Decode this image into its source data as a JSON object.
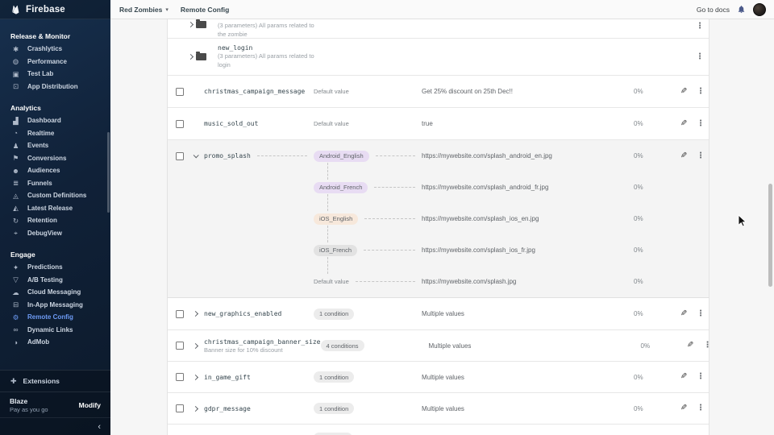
{
  "sidebar": {
    "brand": "Firebase",
    "sections": [
      {
        "title": "Release & Monitor",
        "items": [
          {
            "slug": "crashlytics",
            "label": "Crashlytics",
            "icon": "crashlytics-icon",
            "glyph": "✱"
          },
          {
            "slug": "performance",
            "label": "Performance",
            "icon": "performance-icon",
            "glyph": "◍"
          },
          {
            "slug": "test-lab",
            "label": "Test Lab",
            "icon": "test-lab-icon",
            "glyph": "▣"
          },
          {
            "slug": "app-distribution",
            "label": "App Distribution",
            "icon": "app-distribution-icon",
            "glyph": "⊡"
          }
        ]
      },
      {
        "title": "Analytics",
        "items": [
          {
            "slug": "dashboard",
            "label": "Dashboard",
            "icon": "dashboard-icon",
            "glyph": "▟"
          },
          {
            "slug": "realtime",
            "label": "Realtime",
            "icon": "realtime-icon",
            "glyph": "◔"
          },
          {
            "slug": "events",
            "label": "Events",
            "icon": "events-icon",
            "glyph": "♟"
          },
          {
            "slug": "conversions",
            "label": "Conversions",
            "icon": "conversions-icon",
            "glyph": "⚑"
          },
          {
            "slug": "audiences",
            "label": "Audiences",
            "icon": "audiences-icon",
            "glyph": "☻"
          },
          {
            "slug": "funnels",
            "label": "Funnels",
            "icon": "funnels-icon",
            "glyph": "≣"
          },
          {
            "slug": "custom-definitions",
            "label": "Custom Definitions",
            "icon": "custom-definitions-icon",
            "glyph": "◬"
          },
          {
            "slug": "latest-release",
            "label": "Latest Release",
            "icon": "latest-release-icon",
            "glyph": "◭"
          },
          {
            "slug": "retention",
            "label": "Retention",
            "icon": "retention-icon",
            "glyph": "↻"
          },
          {
            "slug": "debugview",
            "label": "DebugView",
            "icon": "debugview-icon",
            "glyph": "⌖"
          }
        ]
      },
      {
        "title": "Engage",
        "items": [
          {
            "slug": "predictions",
            "label": "Predictions",
            "icon": "predictions-icon",
            "glyph": "✦"
          },
          {
            "slug": "ab-testing",
            "label": "A/B Testing",
            "icon": "ab-testing-icon",
            "glyph": "▽"
          },
          {
            "slug": "cloud-messaging",
            "label": "Cloud Messaging",
            "icon": "cloud-messaging-icon",
            "glyph": "☁"
          },
          {
            "slug": "in-app-messaging",
            "label": "In-App Messaging",
            "icon": "in-app-messaging-icon",
            "glyph": "⊟"
          },
          {
            "slug": "remote-config",
            "label": "Remote Config",
            "icon": "remote-config-icon",
            "glyph": "⚙",
            "active": true
          },
          {
            "slug": "dynamic-links",
            "label": "Dynamic Links",
            "icon": "dynamic-links-icon",
            "glyph": "∞"
          },
          {
            "slug": "admob",
            "label": "AdMob",
            "icon": "admob-icon",
            "glyph": "◑"
          }
        ]
      }
    ],
    "extensions": {
      "label": "Extensions",
      "icon": "extensions-icon",
      "glyph": "✚"
    },
    "plan": {
      "name": "Blaze",
      "sub": "Pay as you go",
      "action": "Modify"
    },
    "collapse_icon": "‹"
  },
  "header": {
    "project": "Red Zombies",
    "caret": "▾",
    "breadcrumb": "Remote Config",
    "docs_link": "Go to docs"
  },
  "colors": {
    "accent_blue": "#6d9bf5",
    "chip_lavender": "#e8dcf3",
    "chip_peach": "#f7e8db",
    "chip_gray": "#e2e2e2",
    "chip_default": "#ececec"
  },
  "table": {
    "rows": [
      {
        "type": "folder-partial",
        "desc_lines": [
          "(3 parameters) All params related to",
          "the zombie"
        ]
      },
      {
        "type": "folder",
        "name": "new_login",
        "desc_lines": [
          "(3 parameters) All params related to",
          "login"
        ]
      },
      {
        "type": "default",
        "name": "christmas_campaign_message",
        "condition": "Default value",
        "value": "Get 25% discount on 25th Dec!!",
        "percent": "0%"
      },
      {
        "type": "default",
        "name": "music_sold_out",
        "condition": "Default value",
        "value": "true",
        "percent": "0%"
      },
      {
        "type": "expanded",
        "name": "promo_splash",
        "conditions": [
          {
            "label": "Android_English",
            "chip": true,
            "chip_bg": "#e8dcf3",
            "value": "https://mywebsite.com/splash_android_en.jpg",
            "percent": "0%"
          },
          {
            "label": "Android_French",
            "chip": true,
            "chip_bg": "#e8dcf3",
            "value": "https://mywebsite.com/splash_android_fr.jpg",
            "percent": "0%"
          },
          {
            "label": "iOS_English",
            "chip": true,
            "chip_bg": "#f7e8db",
            "value": "https://mywebsite.com/splash_ios_en.jpg",
            "percent": "0%"
          },
          {
            "label": "iOS_French",
            "chip": true,
            "chip_bg": "#e2e2e2",
            "value": "https://mywebsite.com/splash_ios_fr.jpg",
            "percent": "0%"
          },
          {
            "label": "Default value",
            "chip": false,
            "value": "https://mywebsite.com/splash.jpg",
            "percent": "0%"
          }
        ]
      },
      {
        "type": "chip",
        "name": "new_graphics_enabled",
        "condition": "1 condition",
        "value": "Multiple values",
        "percent": "0%"
      },
      {
        "type": "chip",
        "name": "christmas_campaign_banner_size",
        "sub": "Banner size for 10% discount",
        "condition": "4 conditions",
        "value": "Multiple values",
        "percent": "0%"
      },
      {
        "type": "chip",
        "name": "in_game_gift",
        "condition": "1 condition",
        "value": "Multiple values",
        "percent": "0%"
      },
      {
        "type": "chip",
        "name": "gdpr_message",
        "condition": "1 condition",
        "value": "Multiple values",
        "percent": "0%"
      },
      {
        "type": "partial"
      }
    ]
  }
}
